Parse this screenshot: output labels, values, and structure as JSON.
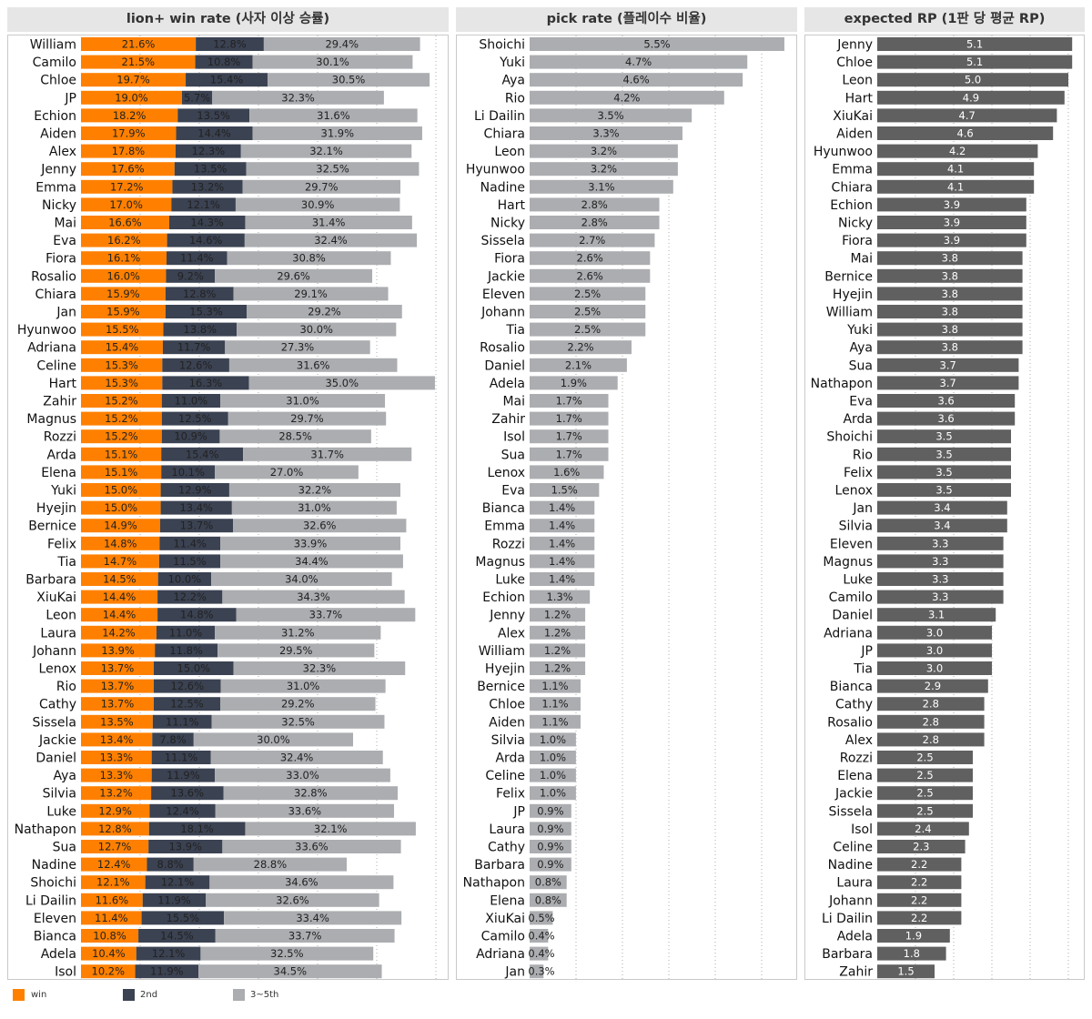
{
  "chart_data": [
    {
      "type": "bar",
      "stacked": true,
      "orientation": "horizontal",
      "title": "lion+ win rate (사자 이상 승률)",
      "categories": [
        "William",
        "Camilo",
        "Chloe",
        "JP",
        "Echion",
        "Aiden",
        "Alex",
        "Jenny",
        "Emma",
        "Nicky",
        "Mai",
        "Eva",
        "Fiora",
        "Rosalio",
        "Chiara",
        "Jan",
        "Hyunwoo",
        "Adriana",
        "Celine",
        "Hart",
        "Zahir",
        "Magnus",
        "Rozzi",
        "Arda",
        "Elena",
        "Yuki",
        "Hyejin",
        "Bernice",
        "Felix",
        "Tia",
        "Barbara",
        "XiuKai",
        "Leon",
        "Laura",
        "Johann",
        "Lenox",
        "Rio",
        "Cathy",
        "Sissela",
        "Jackie",
        "Daniel",
        "Aya",
        "Silvia",
        "Luke",
        "Nathapon",
        "Sua",
        "Nadine",
        "Shoichi",
        "Li Dailin",
        "Eleven",
        "Bianca",
        "Adela",
        "Isol"
      ],
      "series": [
        {
          "name": "win",
          "color": "#ff8000",
          "values": [
            21.6,
            21.5,
            19.7,
            19.0,
            18.2,
            17.9,
            17.8,
            17.6,
            17.2,
            17.0,
            16.6,
            16.2,
            16.1,
            16.0,
            15.9,
            15.9,
            15.5,
            15.4,
            15.3,
            15.3,
            15.2,
            15.2,
            15.2,
            15.1,
            15.1,
            15.0,
            15.0,
            14.9,
            14.8,
            14.7,
            14.5,
            14.4,
            14.4,
            14.2,
            13.9,
            13.7,
            13.7,
            13.7,
            13.5,
            13.4,
            13.3,
            13.3,
            13.2,
            12.9,
            12.8,
            12.7,
            12.4,
            12.1,
            11.6,
            11.4,
            10.8,
            10.4,
            10.2
          ]
        },
        {
          "name": "2nd",
          "color": "#3b4252",
          "values": [
            12.8,
            10.8,
            15.4,
            5.7,
            13.5,
            14.4,
            12.3,
            13.5,
            13.2,
            12.1,
            14.3,
            14.6,
            11.4,
            9.2,
            12.8,
            15.3,
            13.8,
            11.7,
            12.6,
            16.3,
            11.0,
            12.5,
            10.9,
            15.4,
            10.1,
            12.9,
            13.4,
            13.7,
            11.4,
            11.5,
            10.0,
            12.2,
            14.8,
            11.0,
            11.8,
            15.0,
            12.6,
            12.5,
            11.1,
            7.8,
            11.1,
            11.9,
            13.6,
            12.4,
            18.1,
            13.9,
            8.8,
            12.1,
            11.9,
            15.5,
            14.5,
            12.1,
            11.9
          ]
        },
        {
          "name": "3~5th",
          "color": "#abadb0",
          "values": [
            29.4,
            30.1,
            30.5,
            32.3,
            31.6,
            31.9,
            32.1,
            32.5,
            29.7,
            30.9,
            31.4,
            32.4,
            30.8,
            29.6,
            29.1,
            29.2,
            30.0,
            27.3,
            31.6,
            35.0,
            31.0,
            29.7,
            28.5,
            31.7,
            27.0,
            32.2,
            31.0,
            32.6,
            33.9,
            34.4,
            34.0,
            34.3,
            33.7,
            31.2,
            29.5,
            32.3,
            31.0,
            29.2,
            32.5,
            30.0,
            32.4,
            33.0,
            32.8,
            33.6,
            32.1,
            33.6,
            28.8,
            34.6,
            32.6,
            33.4,
            33.7,
            32.5,
            34.5
          ]
        }
      ]
    },
    {
      "type": "bar",
      "orientation": "horizontal",
      "title": "pick rate (플레이수 비율)",
      "color": "#abadb0",
      "categories": [
        "Shoichi",
        "Yuki",
        "Aya",
        "Rio",
        "Li Dailin",
        "Chiara",
        "Leon",
        "Hyunwoo",
        "Nadine",
        "Hart",
        "Nicky",
        "Sissela",
        "Fiora",
        "Jackie",
        "Eleven",
        "Johann",
        "Tia",
        "Rosalio",
        "Daniel",
        "Adela",
        "Mai",
        "Zahir",
        "Isol",
        "Sua",
        "Lenox",
        "Eva",
        "Bianca",
        "Emma",
        "Rozzi",
        "Magnus",
        "Luke",
        "Echion",
        "Jenny",
        "Alex",
        "William",
        "Hyejin",
        "Bernice",
        "Chloe",
        "Aiden",
        "Silvia",
        "Arda",
        "Celine",
        "Felix",
        "JP",
        "Laura",
        "Cathy",
        "Barbara",
        "Nathapon",
        "Elena",
        "XiuKai",
        "Camilo",
        "Adriana",
        "Jan"
      ],
      "values": [
        5.5,
        4.7,
        4.6,
        4.2,
        3.5,
        3.3,
        3.2,
        3.2,
        3.1,
        2.8,
        2.8,
        2.7,
        2.6,
        2.6,
        2.5,
        2.5,
        2.5,
        2.2,
        2.1,
        1.9,
        1.7,
        1.7,
        1.7,
        1.7,
        1.6,
        1.5,
        1.4,
        1.4,
        1.4,
        1.4,
        1.4,
        1.3,
        1.2,
        1.2,
        1.2,
        1.2,
        1.1,
        1.1,
        1.1,
        1.0,
        1.0,
        1.0,
        1.0,
        0.9,
        0.9,
        0.9,
        0.9,
        0.8,
        0.8,
        0.5,
        0.4,
        0.4,
        0.3
      ],
      "value_suffix": "%"
    },
    {
      "type": "bar",
      "orientation": "horizontal",
      "title": "expected RP (1판 당 평균 RP)",
      "color": "#606060",
      "categories": [
        "Jenny",
        "Chloe",
        "Leon",
        "Hart",
        "XiuKai",
        "Aiden",
        "Hyunwoo",
        "Emma",
        "Chiara",
        "Echion",
        "Nicky",
        "Fiora",
        "Mai",
        "Bernice",
        "Hyejin",
        "William",
        "Yuki",
        "Aya",
        "Sua",
        "Nathapon",
        "Eva",
        "Arda",
        "Shoichi",
        "Rio",
        "Felix",
        "Lenox",
        "Jan",
        "Silvia",
        "Eleven",
        "Magnus",
        "Luke",
        "Camilo",
        "Daniel",
        "Adriana",
        "JP",
        "Tia",
        "Bianca",
        "Cathy",
        "Rosalio",
        "Alex",
        "Rozzi",
        "Elena",
        "Jackie",
        "Sissela",
        "Isol",
        "Celine",
        "Nadine",
        "Laura",
        "Johann",
        "Li Dailin",
        "Adela",
        "Barbara",
        "Zahir"
      ],
      "values": [
        5.1,
        5.1,
        5.0,
        4.9,
        4.7,
        4.6,
        4.2,
        4.1,
        4.1,
        3.9,
        3.9,
        3.9,
        3.8,
        3.8,
        3.8,
        3.8,
        3.8,
        3.8,
        3.7,
        3.7,
        3.6,
        3.6,
        3.5,
        3.5,
        3.5,
        3.5,
        3.4,
        3.4,
        3.3,
        3.3,
        3.3,
        3.3,
        3.1,
        3.0,
        3.0,
        3.0,
        2.9,
        2.8,
        2.8,
        2.8,
        2.5,
        2.5,
        2.5,
        2.5,
        2.4,
        2.3,
        2.2,
        2.2,
        2.2,
        2.2,
        1.9,
        1.8,
        1.5
      ],
      "value_suffix": ""
    }
  ],
  "legend": [
    {
      "label": "win",
      "color": "#ff8000"
    },
    {
      "label": "2nd",
      "color": "#3b4252"
    },
    {
      "label": "3~5th",
      "color": "#abadb0"
    }
  ]
}
